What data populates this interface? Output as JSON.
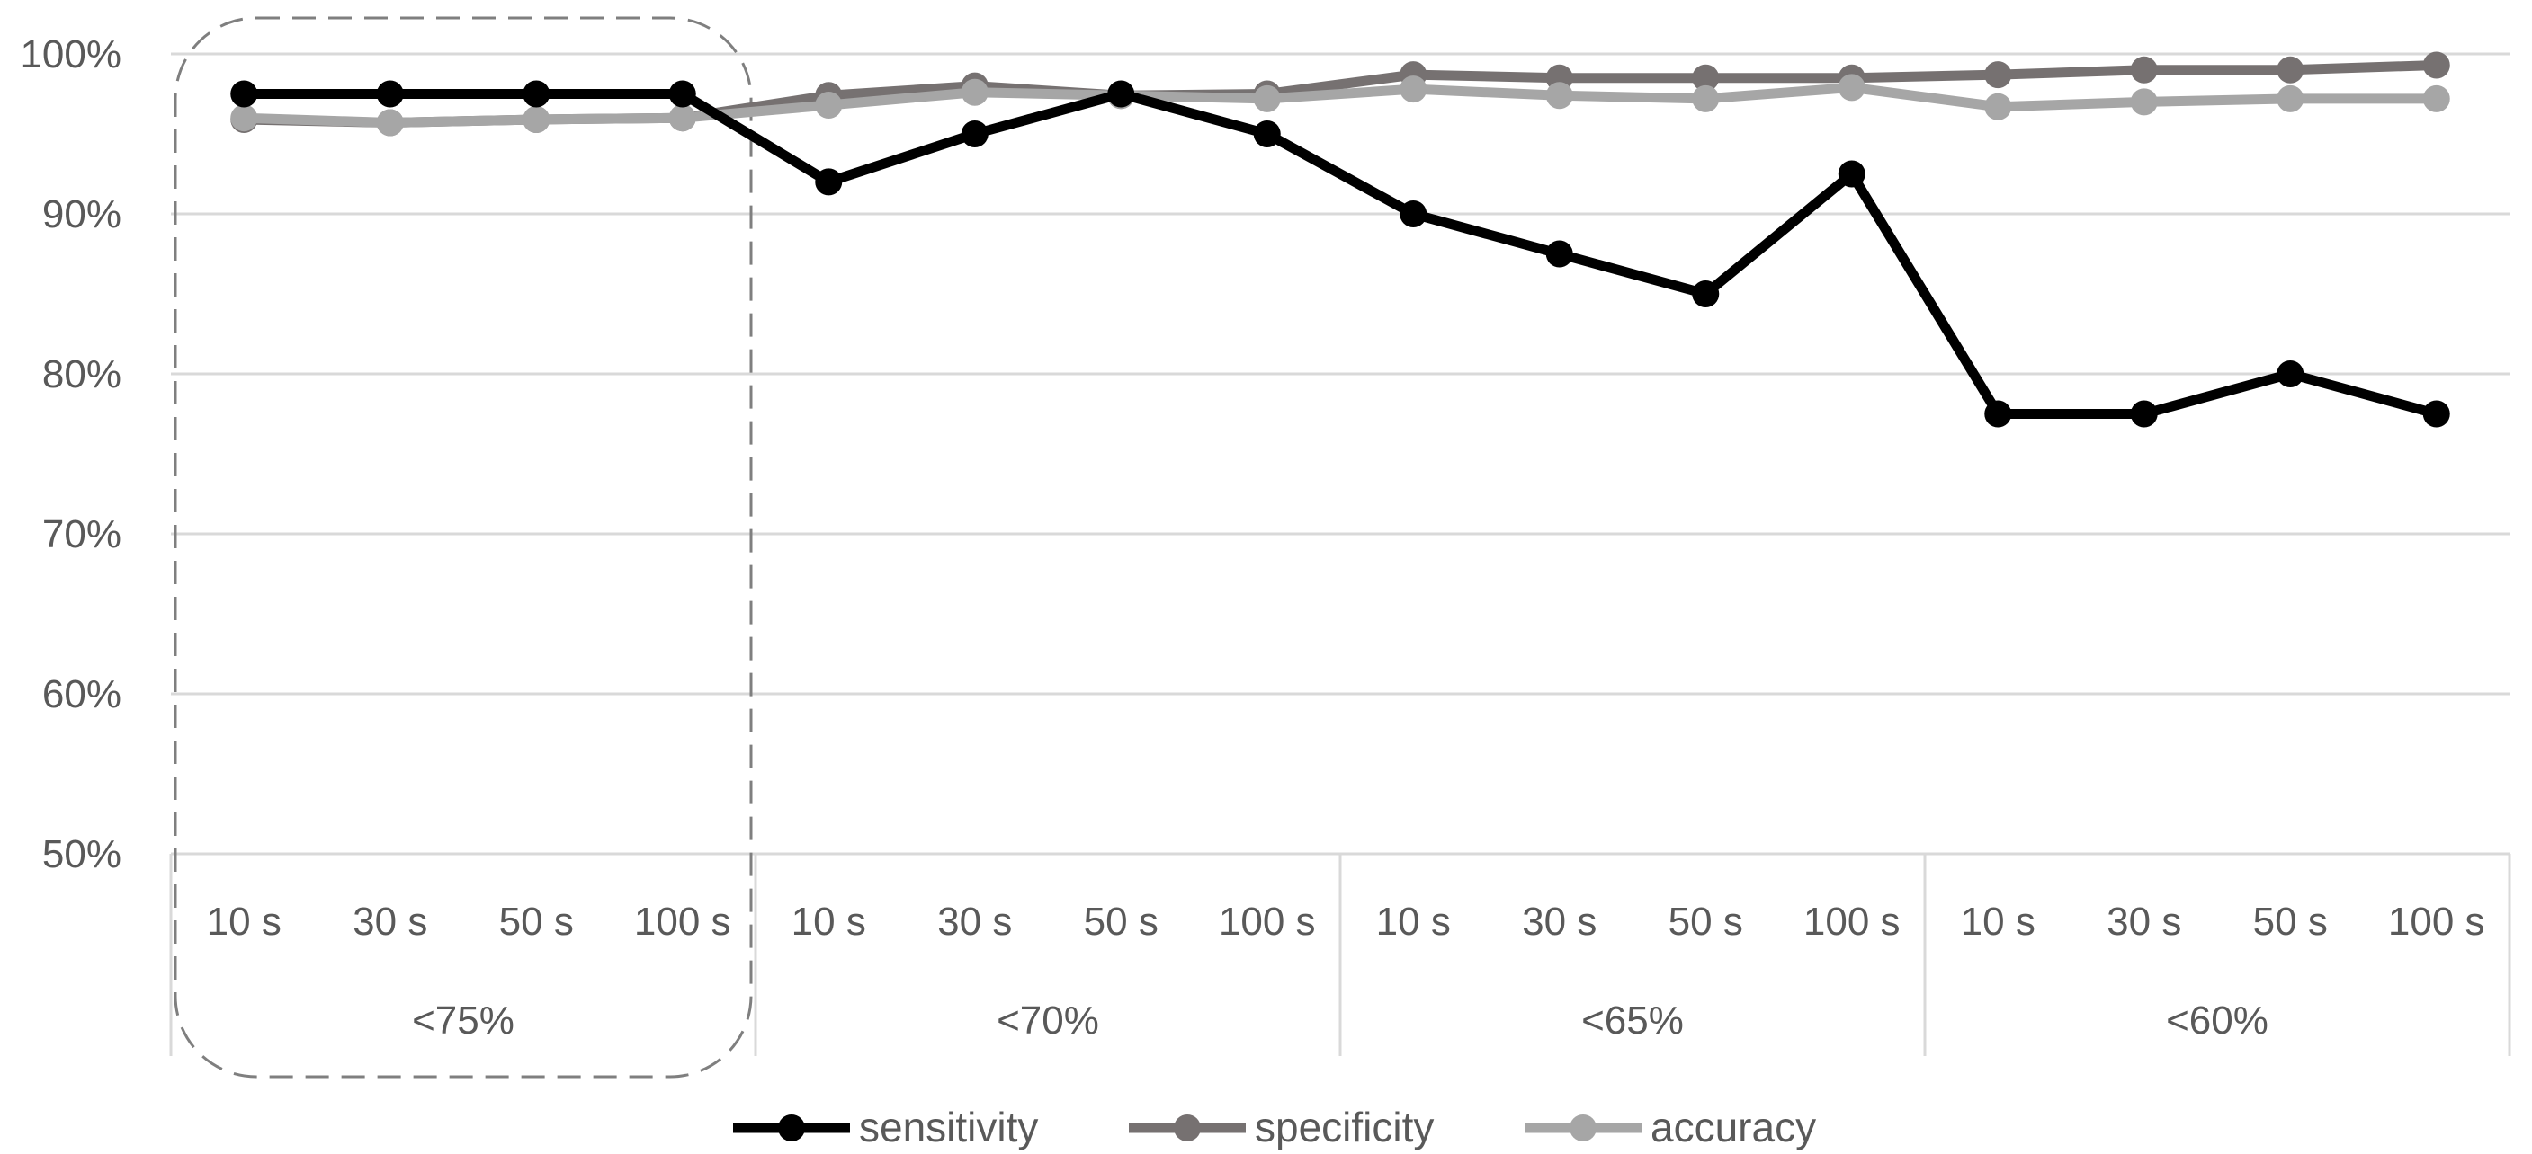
{
  "chart_data": {
    "type": "line",
    "y_ticks": [
      "50%",
      "60%",
      "70%",
      "80%",
      "90%",
      "100%"
    ],
    "ylim": [
      50,
      100
    ],
    "grid": true,
    "legend_position": "bottom",
    "x": [
      "10 s",
      "30 s",
      "50 s",
      "100 s",
      "10 s",
      "30 s",
      "50 s",
      "100 s",
      "10 s",
      "30 s",
      "50 s",
      "100 s",
      "10 s",
      "30 s",
      "50 s",
      "100 s"
    ],
    "groups": [
      {
        "label": "<75%",
        "size": 4,
        "highlighted": true
      },
      {
        "label": "<70%",
        "size": 4
      },
      {
        "label": "<65%",
        "size": 4
      },
      {
        "label": "<60%",
        "size": 4
      }
    ],
    "series": [
      {
        "name": "sensitivity",
        "color": "#000000",
        "values": [
          97.5,
          97.5,
          97.5,
          97.5,
          92,
          95,
          97.5,
          95,
          90,
          87.5,
          85,
          92.5,
          77.5,
          77.5,
          80,
          77.5
        ]
      },
      {
        "name": "specificity",
        "color": "#767171",
        "values": [
          95.9,
          95.7,
          95.9,
          96,
          97.4,
          98,
          97.4,
          97.5,
          98.7,
          98.5,
          98.5,
          98.5,
          98.7,
          99,
          99,
          99.3
        ]
      },
      {
        "name": "accuracy",
        "color": "#a6a6a6",
        "values": [
          96,
          95.7,
          95.9,
          96,
          96.8,
          97.6,
          97.4,
          97.2,
          97.8,
          97.4,
          97.2,
          97.9,
          96.7,
          97,
          97.2,
          97.2
        ]
      }
    ]
  }
}
